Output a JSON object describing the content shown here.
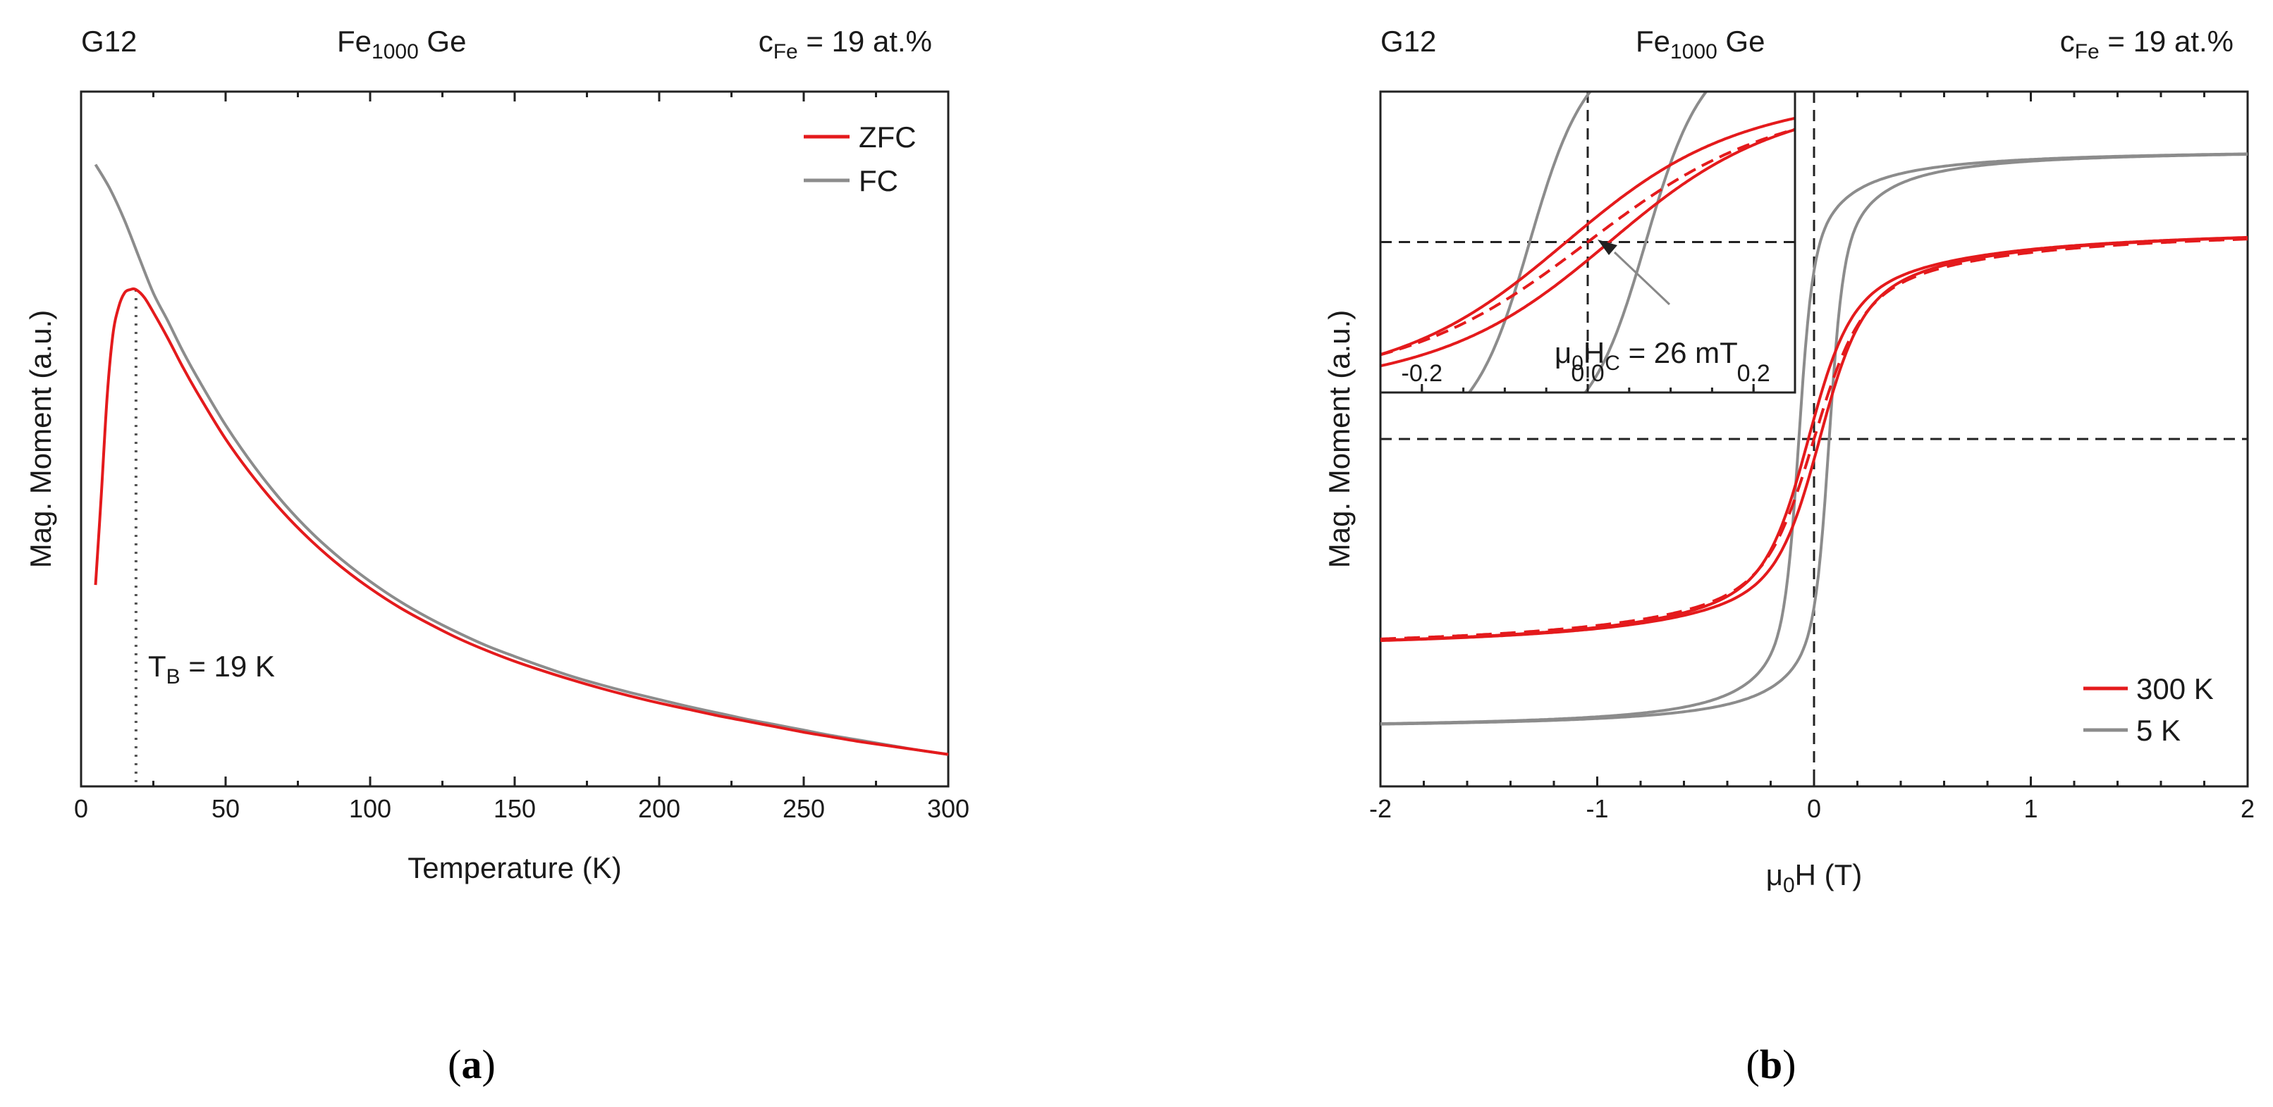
{
  "chart_data": [
    {
      "panel": "a",
      "type": "line",
      "caption_label": "a",
      "header": {
        "sample": "G12",
        "material_base": "Fe",
        "material_sub": "1000",
        "material_suffix": " Ge",
        "conc_prefix": "c",
        "conc_sub": "Fe",
        "conc_suffix": " = 19 at.%"
      },
      "xlabel": "Temperature (K)",
      "ylabel": "Mag. Moment (a.u.)",
      "xlim": [
        0,
        300
      ],
      "ylim": [
        0,
        1
      ],
      "x_ticks": [
        0,
        50,
        100,
        150,
        200,
        250,
        300
      ],
      "x_tick_labels": [
        "0",
        "50",
        "100",
        "150",
        "200",
        "250",
        "300"
      ],
      "legend": {
        "position": "top-right",
        "entries": [
          "ZFC",
          "FC"
        ]
      },
      "annotation": {
        "prefix": "T",
        "sub": "B",
        "suffix": " = 19 K",
        "x": 19
      },
      "series": [
        {
          "name": "ZFC",
          "color": "#e41a1c",
          "x": [
            5,
            7,
            9,
            11,
            13,
            15,
            17,
            19,
            22,
            26,
            30,
            35,
            40,
            50,
            60,
            70,
            80,
            90,
            100,
            110,
            120,
            130,
            140,
            150,
            160,
            170,
            180,
            190,
            200,
            210,
            220,
            230,
            240,
            250,
            260,
            270,
            280,
            290,
            300
          ],
          "y": [
            0.29,
            0.42,
            0.56,
            0.65,
            0.69,
            0.71,
            0.715,
            0.715,
            0.703,
            0.675,
            0.645,
            0.605,
            0.568,
            0.5,
            0.443,
            0.394,
            0.352,
            0.316,
            0.285,
            0.258,
            0.235,
            0.214,
            0.196,
            0.18,
            0.166,
            0.153,
            0.141,
            0.13,
            0.12,
            0.111,
            0.102,
            0.094,
            0.086,
            0.078,
            0.071,
            0.064,
            0.058,
            0.052,
            0.046
          ]
        },
        {
          "name": "FC",
          "color": "#8c8c8c",
          "x": [
            5,
            10,
            15,
            20,
            25,
            30,
            35,
            40,
            50,
            60,
            70,
            80,
            90,
            100,
            110,
            120,
            130,
            140,
            150,
            160,
            170,
            180,
            190,
            200,
            210,
            220,
            230,
            240,
            250,
            260,
            270,
            280,
            290,
            300
          ],
          "y": [
            0.895,
            0.86,
            0.815,
            0.762,
            0.71,
            0.67,
            0.628,
            0.59,
            0.52,
            0.46,
            0.408,
            0.364,
            0.327,
            0.295,
            0.267,
            0.243,
            0.222,
            0.203,
            0.187,
            0.172,
            0.158,
            0.146,
            0.135,
            0.125,
            0.115,
            0.106,
            0.097,
            0.089,
            0.081,
            0.073,
            0.066,
            0.059,
            0.052,
            0.046
          ]
        }
      ]
    },
    {
      "panel": "b",
      "type": "line",
      "caption_label": "b",
      "header": {
        "sample": "G12",
        "material_base": "Fe",
        "material_sub": "1000",
        "material_suffix": " Ge",
        "conc_prefix": "c",
        "conc_sub": "Fe",
        "conc_suffix": " = 19 at.%"
      },
      "xlabel_prefix": "μ",
      "xlabel_sub": "0",
      "xlabel_suffix": "H (T)",
      "ylabel": "Mag. Moment (a.u.)",
      "xlim": [
        -2,
        2
      ],
      "ylim": [
        -1.05,
        1.05
      ],
      "x_ticks": [
        -2,
        -1,
        0,
        1,
        2
      ],
      "x_tick_labels": [
        "-2",
        "-1",
        "0",
        "1",
        "2"
      ],
      "legend": {
        "position": "bottom-right",
        "entries": [
          "300 K",
          "5 K"
        ]
      },
      "series": [
        {
          "name": "300 K",
          "color": "#e41a1c",
          "Ms": 0.65,
          "Hc": 0.026,
          "width": 0.18,
          "style": "solid"
        },
        {
          "name": "300 K fit",
          "color": "#e41a1c",
          "Ms": 0.65,
          "Hc": 0,
          "width": 0.2,
          "style": "dashed"
        },
        {
          "name": "5 K",
          "color": "#8c8c8c",
          "Ms": 0.88,
          "Hc": 0.07,
          "width": 0.06,
          "style": "solid"
        }
      ],
      "inset": {
        "xlim": [
          -0.25,
          0.25
        ],
        "ylim": [
          -0.52,
          0.52
        ],
        "x_ticks": [
          -0.2,
          0,
          0.2
        ],
        "x_tick_labels": [
          "-0.2",
          "0.0",
          "0.2"
        ],
        "annotation": {
          "prefix": "μ",
          "sub1": "0",
          "mid": "H",
          "sub2": "C",
          "suffix": " = 26 mT"
        }
      }
    }
  ]
}
